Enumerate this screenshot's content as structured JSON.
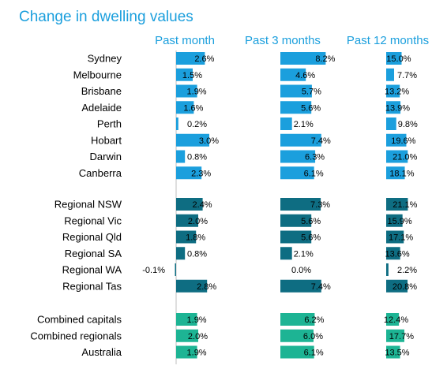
{
  "chart_data": {
    "type": "bar",
    "title": "Change in dwelling values",
    "columns": [
      "Past month",
      "Past 3 months",
      "Past 12 months"
    ],
    "groups": [
      {
        "color": "#1B9FDD",
        "rows": [
          {
            "label": "Sydney",
            "values": [
              2.6,
              8.2,
              15.0
            ],
            "labels": [
              "2.6%",
              "8.2%",
              "15.0%"
            ]
          },
          {
            "label": "Melbourne",
            "values": [
              1.5,
              4.6,
              7.7
            ],
            "labels": [
              "1.5%",
              "4.6%",
              "7.7%"
            ]
          },
          {
            "label": "Brisbane",
            "values": [
              1.9,
              5.7,
              13.2
            ],
            "labels": [
              "1.9%",
              "5.7%",
              "13.2%"
            ]
          },
          {
            "label": "Adelaide",
            "values": [
              1.6,
              5.6,
              13.9
            ],
            "labels": [
              "1.6%",
              "5.6%",
              "13.9%"
            ]
          },
          {
            "label": "Perth",
            "values": [
              0.2,
              2.1,
              9.8
            ],
            "labels": [
              "0.2%",
              "2.1%",
              "9.8%"
            ]
          },
          {
            "label": "Hobart",
            "values": [
              3.0,
              7.4,
              19.6
            ],
            "labels": [
              "3.0%",
              "7.4%",
              "19.6%"
            ]
          },
          {
            "label": "Darwin",
            "values": [
              0.8,
              6.3,
              21.0
            ],
            "labels": [
              "0.8%",
              "6.3%",
              "21.0%"
            ]
          },
          {
            "label": "Canberra",
            "values": [
              2.3,
              6.1,
              18.1
            ],
            "labels": [
              "2.3%",
              "6.1%",
              "18.1%"
            ]
          }
        ]
      },
      {
        "color": "#0E6D82",
        "rows": [
          {
            "label": "Regional NSW",
            "values": [
              2.4,
              7.3,
              21.1
            ],
            "labels": [
              "2.4%",
              "7.3%",
              "21.1%"
            ]
          },
          {
            "label": "Regional Vic",
            "values": [
              2.0,
              5.6,
              15.9
            ],
            "labels": [
              "2.0%",
              "5.6%",
              "15.9%"
            ]
          },
          {
            "label": "Regional Qld",
            "values": [
              1.8,
              5.6,
              17.1
            ],
            "labels": [
              "1.8%",
              "5.6%",
              "17.1%"
            ]
          },
          {
            "label": "Regional SA",
            "values": [
              0.8,
              2.1,
              13.6
            ],
            "labels": [
              "0.8%",
              "2.1%",
              "13.6%"
            ]
          },
          {
            "label": "Regional WA",
            "values": [
              -0.1,
              0.0,
              2.2
            ],
            "labels": [
              "-0.1%",
              "0.0%",
              "2.2%"
            ]
          },
          {
            "label": "Regional Tas",
            "values": [
              2.8,
              7.4,
              20.8
            ],
            "labels": [
              "2.8%",
              "7.4%",
              "20.8%"
            ]
          }
        ]
      },
      {
        "color": "#1DB494",
        "rows": [
          {
            "label": "Combined capitals",
            "values": [
              1.9,
              6.2,
              12.4
            ],
            "labels": [
              "1.9%",
              "6.2%",
              "12.4%"
            ]
          },
          {
            "label": "Combined regionals",
            "values": [
              2.0,
              6.0,
              17.7
            ],
            "labels": [
              "2.0%",
              "6.0%",
              "17.7%"
            ]
          },
          {
            "label": "Australia",
            "values": [
              1.9,
              6.1,
              13.5
            ],
            "labels": [
              "1.9%",
              "6.1%",
              "13.5%"
            ]
          }
        ]
      }
    ],
    "colors": {
      "title": "#1B9FDD",
      "text": "#000000",
      "axis": "#BFBFBF"
    }
  }
}
